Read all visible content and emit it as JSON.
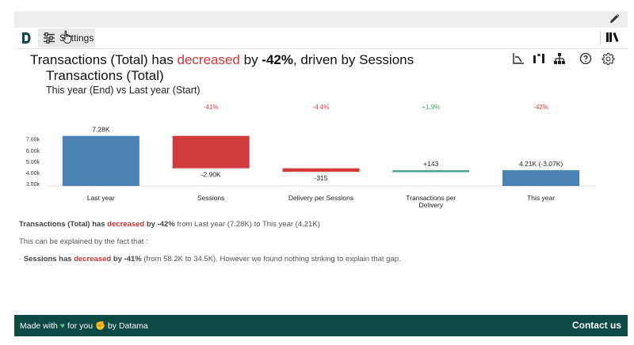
{
  "toolbar": {
    "settings_label": "Settings"
  },
  "headline": {
    "part1": "Transactions (Total) has ",
    "decreased_word": "decreased",
    "part2": " by ",
    "percent": "-42%",
    "part3": ", driven by Sessions"
  },
  "subtitle": "Transactions (Total)",
  "period": "This year (End) vs Last year (Start)",
  "chart_data": {
    "type": "bar",
    "subtype": "waterfall",
    "categories": [
      "Last year",
      "Sessions",
      "Delivery per Sessions",
      "Transactions per Delivery",
      "This year"
    ],
    "category_lines": [
      [
        "Last year"
      ],
      [
        "Sessions"
      ],
      [
        "Delivery per Sessions"
      ],
      [
        "Transactions per",
        "Delivery"
      ],
      [
        "This year"
      ]
    ],
    "values": [
      7280,
      -2900,
      -315,
      143,
      4210
    ],
    "value_labels": [
      "7.28K",
      "-2.90K",
      "-315",
      "+143",
      "4.21K (-3.07K)"
    ],
    "pct_labels": [
      "",
      "-41%",
      "-4.4%",
      "+1.9%",
      "-42%"
    ],
    "yticks": [
      "3.00k",
      "4.00k",
      "5.00k",
      "6.00k",
      "7.00k"
    ],
    "ytick_values": [
      3000,
      4000,
      5000,
      6000,
      7000
    ],
    "ylim": [
      2800,
      7600
    ],
    "colors": {
      "total": "#4a82b4",
      "decrease": "#d13a3a",
      "increase": "#45a08c",
      "pct_neg": "#d13a3a",
      "pct_pos": "#3aa06a"
    }
  },
  "summary": {
    "l1_metric": "Transactions (Total)",
    "l1_has": " has ",
    "l1_word": "decreased",
    "l1_by": " by -42%",
    "l1_rest": " from Last year (7.28K) to This year (4.21K)",
    "l2": "This can be explained by the fact that :",
    "l3_bullet": "· ",
    "l3_metric": "Sessions has ",
    "l3_word": "decreased",
    "l3_by": " by -41%",
    "l3_rest": " (from 58.2K to 34.5K). However we found nothing striking to explain that gap."
  },
  "footer": {
    "made_with": "Made with",
    "for_you": "for you",
    "by": "by Datama",
    "contact": "Contact us"
  }
}
